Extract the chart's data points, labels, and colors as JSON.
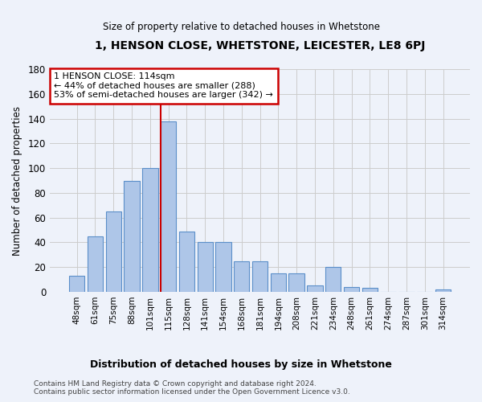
{
  "title": "1, HENSON CLOSE, WHETSTONE, LEICESTER, LE8 6PJ",
  "subtitle": "Size of property relative to detached houses in Whetstone",
  "xlabel": "Distribution of detached houses by size in Whetstone",
  "ylabel": "Number of detached properties",
  "bar_labels": [
    "48sqm",
    "61sqm",
    "75sqm",
    "88sqm",
    "101sqm",
    "115sqm",
    "128sqm",
    "141sqm",
    "154sqm",
    "168sqm",
    "181sqm",
    "194sqm",
    "208sqm",
    "221sqm",
    "234sqm",
    "248sqm",
    "261sqm",
    "274sqm",
    "287sqm",
    "301sqm",
    "314sqm"
  ],
  "bar_heights": [
    13,
    45,
    65,
    90,
    100,
    138,
    49,
    40,
    40,
    25,
    25,
    15,
    15,
    5,
    20,
    4,
    3,
    0,
    0,
    0,
    2
  ],
  "bar_color": "#aec6e8",
  "bar_edge_color": "#5b8fc9",
  "highlight_bar_index": 5,
  "highlight_bar_edge_color": "#cc0000",
  "annotation_line1": "1 HENSON CLOSE: 114sqm",
  "annotation_line2": "← 44% of detached houses are smaller (288)",
  "annotation_line3": "53% of semi-detached houses are larger (342) →",
  "annotation_box_color": "#ffffff",
  "annotation_box_edge_color": "#cc0000",
  "ylim": [
    0,
    180
  ],
  "yticks": [
    0,
    20,
    40,
    60,
    80,
    100,
    120,
    140,
    160,
    180
  ],
  "footer_line1": "Contains HM Land Registry data © Crown copyright and database right 2024.",
  "footer_line2": "Contains public sector information licensed under the Open Government Licence v3.0.",
  "bg_color": "#eef2fa",
  "grid_color": "#cccccc",
  "figsize": [
    6.0,
    5.0
  ],
  "dpi": 100
}
